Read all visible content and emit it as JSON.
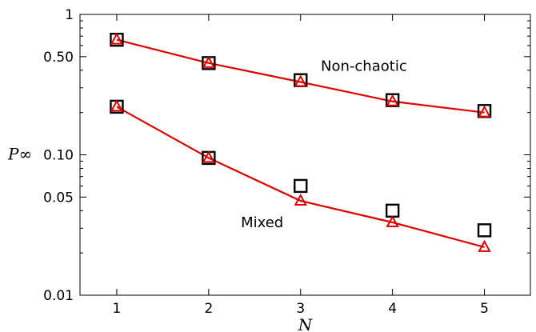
{
  "chart_data": {
    "type": "line",
    "xlabel": "N",
    "ylabel": "P∞",
    "y_scale": "log",
    "xlim": [
      0.6,
      5.5
    ],
    "ylim": [
      0.01,
      1
    ],
    "x_ticks": [
      1,
      2,
      3,
      4,
      5
    ],
    "y_ticks": [
      {
        "value": 0.01,
        "label": "0.01"
      },
      {
        "value": 0.05,
        "label": "0.05"
      },
      {
        "value": 0.1,
        "label": "0.10"
      },
      {
        "value": 0.5,
        "label": "0.50"
      },
      {
        "value": 1,
        "label": "1"
      }
    ],
    "grid": false,
    "x": [
      1,
      2,
      3,
      4,
      5
    ],
    "series": [
      {
        "key": "nonchaotic-line",
        "style": "line",
        "color": "#e00000",
        "values": [
          0.66,
          0.45,
          0.33,
          0.24,
          0.2
        ]
      },
      {
        "key": "nonchaotic-triangles",
        "style": "triangle",
        "color": "#e00000",
        "values": [
          0.66,
          0.45,
          0.33,
          0.24,
          0.2
        ]
      },
      {
        "key": "nonchaotic-squares",
        "style": "square",
        "color": "#000000",
        "values": [
          0.66,
          0.45,
          0.34,
          0.245,
          0.205
        ]
      },
      {
        "key": "mixed-line",
        "style": "line",
        "color": "#e00000",
        "values": [
          0.22,
          0.095,
          0.047,
          0.033,
          0.022
        ]
      },
      {
        "key": "mixed-triangles",
        "style": "triangle",
        "color": "#e00000",
        "values": [
          0.22,
          0.095,
          0.047,
          0.033,
          0.022
        ]
      },
      {
        "key": "mixed-squares",
        "style": "square",
        "color": "#000000",
        "values": [
          0.22,
          0.095,
          0.06,
          0.04,
          0.029
        ]
      }
    ],
    "annotations": [
      {
        "text": "Non-chaotic",
        "x": 3.22,
        "y": 0.43
      },
      {
        "text": "Mixed",
        "x": 2.35,
        "y": 0.033
      }
    ]
  }
}
